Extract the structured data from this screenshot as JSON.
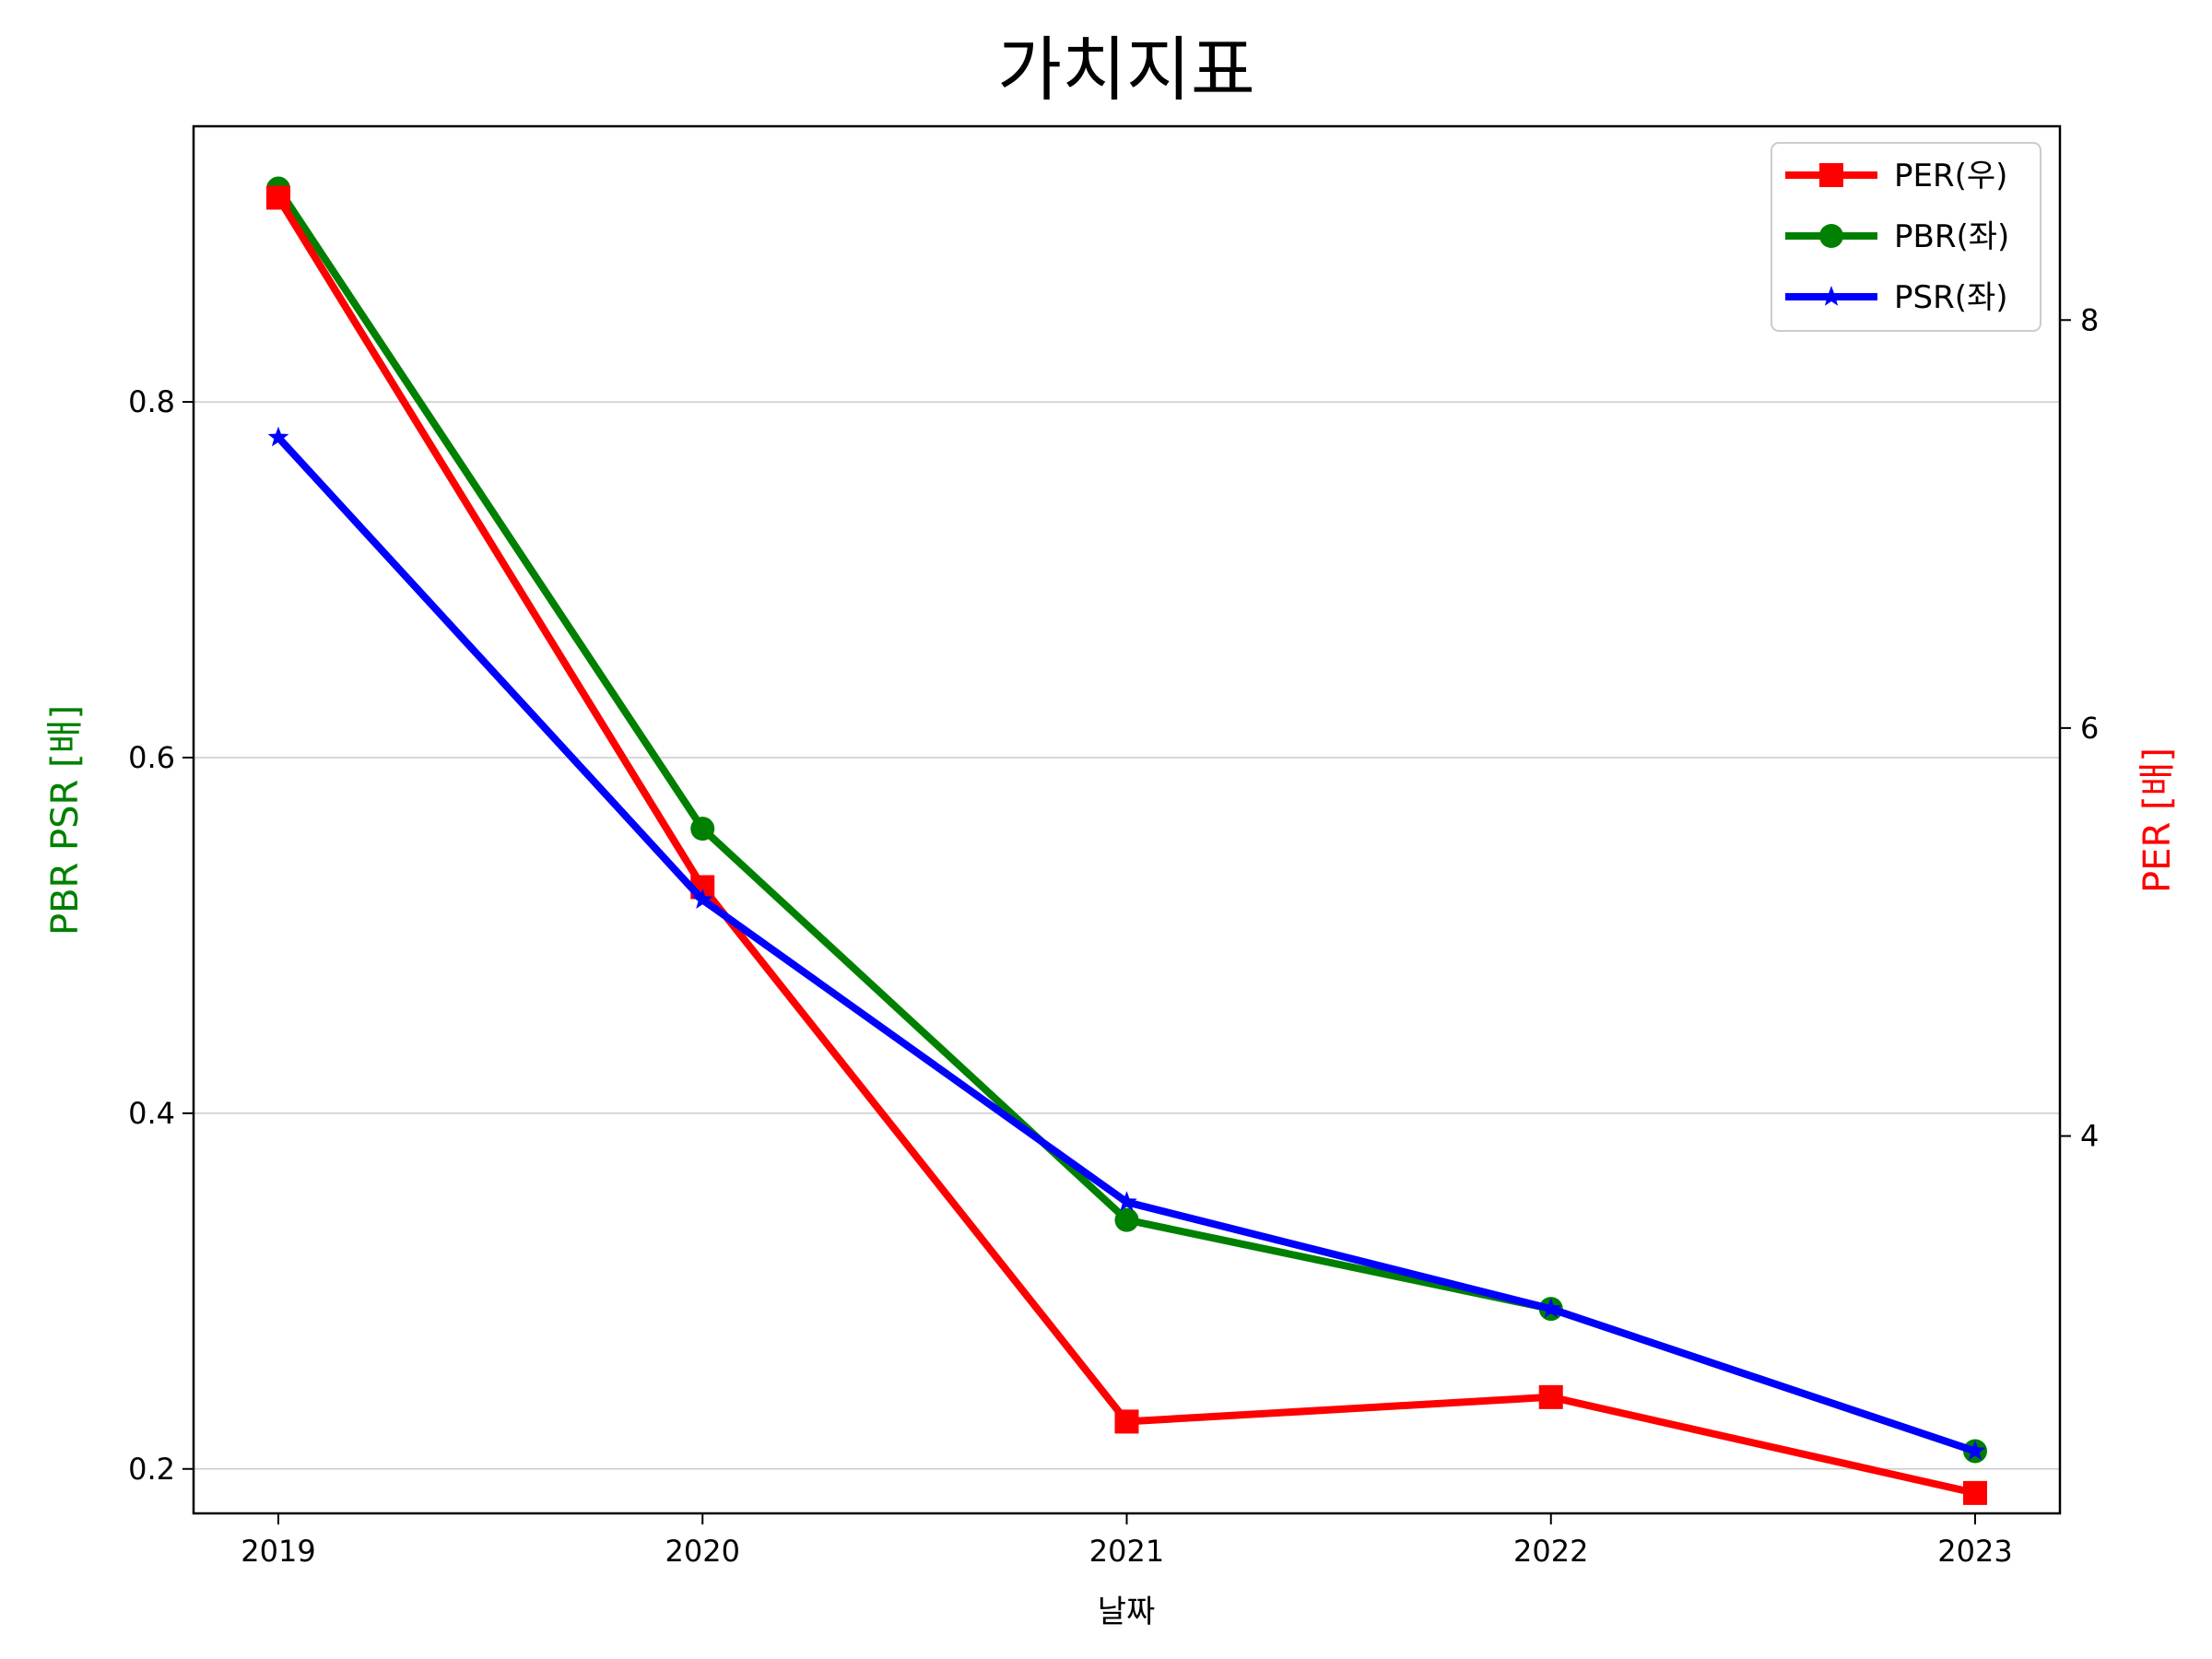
{
  "chart_data": {
    "type": "line",
    "title": "가치지표",
    "xlabel": "날짜",
    "ylabel_left": "PBR PSR [배]",
    "ylabel_right": "PER [배]",
    "x": [
      "2019",
      "2020",
      "2021",
      "2022",
      "2023"
    ],
    "ylim_left": [
      0.175,
      0.955
    ],
    "yticks_left": [
      0.2,
      0.4,
      0.6,
      0.8
    ],
    "yticks_left_labels": [
      "0.2",
      "0.4",
      "0.6",
      "0.8"
    ],
    "ylim_right": [
      2.15,
      8.95
    ],
    "yticks_right": [
      4,
      6,
      8
    ],
    "yticks_right_labels": [
      "4",
      "6",
      "8"
    ],
    "grid": "horizontal (left axis)",
    "legend_position": "top-right",
    "series": [
      {
        "name": "PER(우)",
        "axis": "right",
        "color": "#ff0000",
        "marker": "square",
        "values": [
          8.6,
          5.22,
          2.6,
          2.72,
          2.25
        ]
      },
      {
        "name": "PBR(좌)",
        "axis": "left",
        "color": "#008000",
        "marker": "circle",
        "values": [
          0.92,
          0.56,
          0.34,
          0.29,
          0.21
        ]
      },
      {
        "name": "PSR(좌)",
        "axis": "left",
        "color": "#0000ff",
        "marker": "star",
        "values": [
          0.78,
          0.52,
          0.35,
          0.29,
          0.21
        ]
      }
    ],
    "colors": {
      "left_axis_label": "#008000",
      "right_axis_label": "#ff0000"
    }
  }
}
